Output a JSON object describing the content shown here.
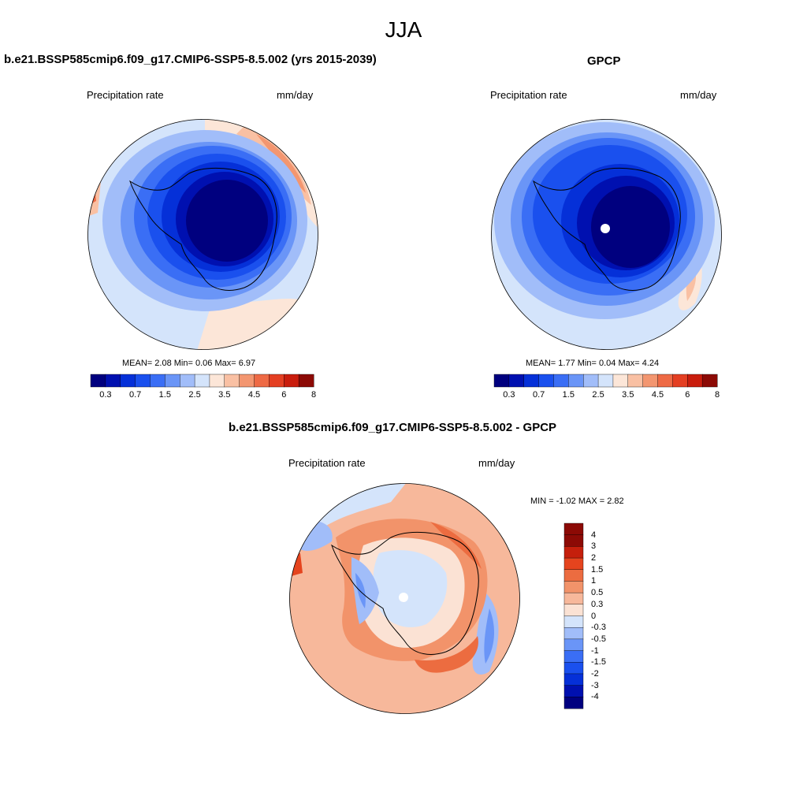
{
  "figure": {
    "season_title": "JJA"
  },
  "palette": {
    "abs": [
      "#00007f",
      "#0010b0",
      "#0530d8",
      "#1a50ee",
      "#3a6ef5",
      "#6a95f7",
      "#a1bdf9",
      "#d4e4fb",
      "#fce6d8",
      "#f9c0a3",
      "#f39670",
      "#ee6a45",
      "#e43f22",
      "#c91d0d",
      "#8c0a05"
    ],
    "diff": [
      "#00007f",
      "#0010b0",
      "#0530d8",
      "#1a50ee",
      "#3a6ef5",
      "#6a95f7",
      "#a1bdf9",
      "#d4e4fb",
      "#fbe2d4",
      "#f7b89b",
      "#f2936a",
      "#ec6c40",
      "#e5441e",
      "#c51f0c",
      "#8c0a05"
    ]
  },
  "panels": {
    "model": {
      "title": "b.e21.BSSP585cmip6.f09_g17.CMIP6-SSP5-8.5.002 (yrs 2015-2039)",
      "variable": "Precipitation rate",
      "units": "mm/day",
      "stats_mean_label": "MEAN=",
      "stats_mean": "2.08",
      "stats_min_label": "Min=",
      "stats_min": "0.06",
      "stats_max_label": "Max=",
      "stats_max": "6.97",
      "colorbar_ticks": [
        "0.3",
        "0.7",
        "1.5",
        "2.5",
        "3.5",
        "4.5",
        "6",
        "8"
      ]
    },
    "obs": {
      "title": "GPCP",
      "variable": "Precipitation rate",
      "units": "mm/day",
      "stats_mean_label": "MEAN=",
      "stats_mean": "1.77",
      "stats_min_label": "Min=",
      "stats_min": "0.04",
      "stats_max_label": "Max=",
      "stats_max": "4.24",
      "colorbar_ticks": [
        "0.3",
        "0.7",
        "1.5",
        "2.5",
        "3.5",
        "4.5",
        "6",
        "8"
      ]
    },
    "diff": {
      "title": "b.e21.BSSP585cmip6.f09_g17.CMIP6-SSP5-8.5.002 - GPCP",
      "variable": "Precipitation rate",
      "units": "mm/day",
      "minmax_text": "MIN =  -1.02 MAX =   2.82",
      "colorbar_ticks": [
        "4",
        "3",
        "2",
        "1.5",
        "1",
        "0.5",
        "0.3",
        "0",
        "-0.3",
        "-0.5",
        "-1",
        "-1.5",
        "-2",
        "-3",
        "-4"
      ]
    }
  }
}
